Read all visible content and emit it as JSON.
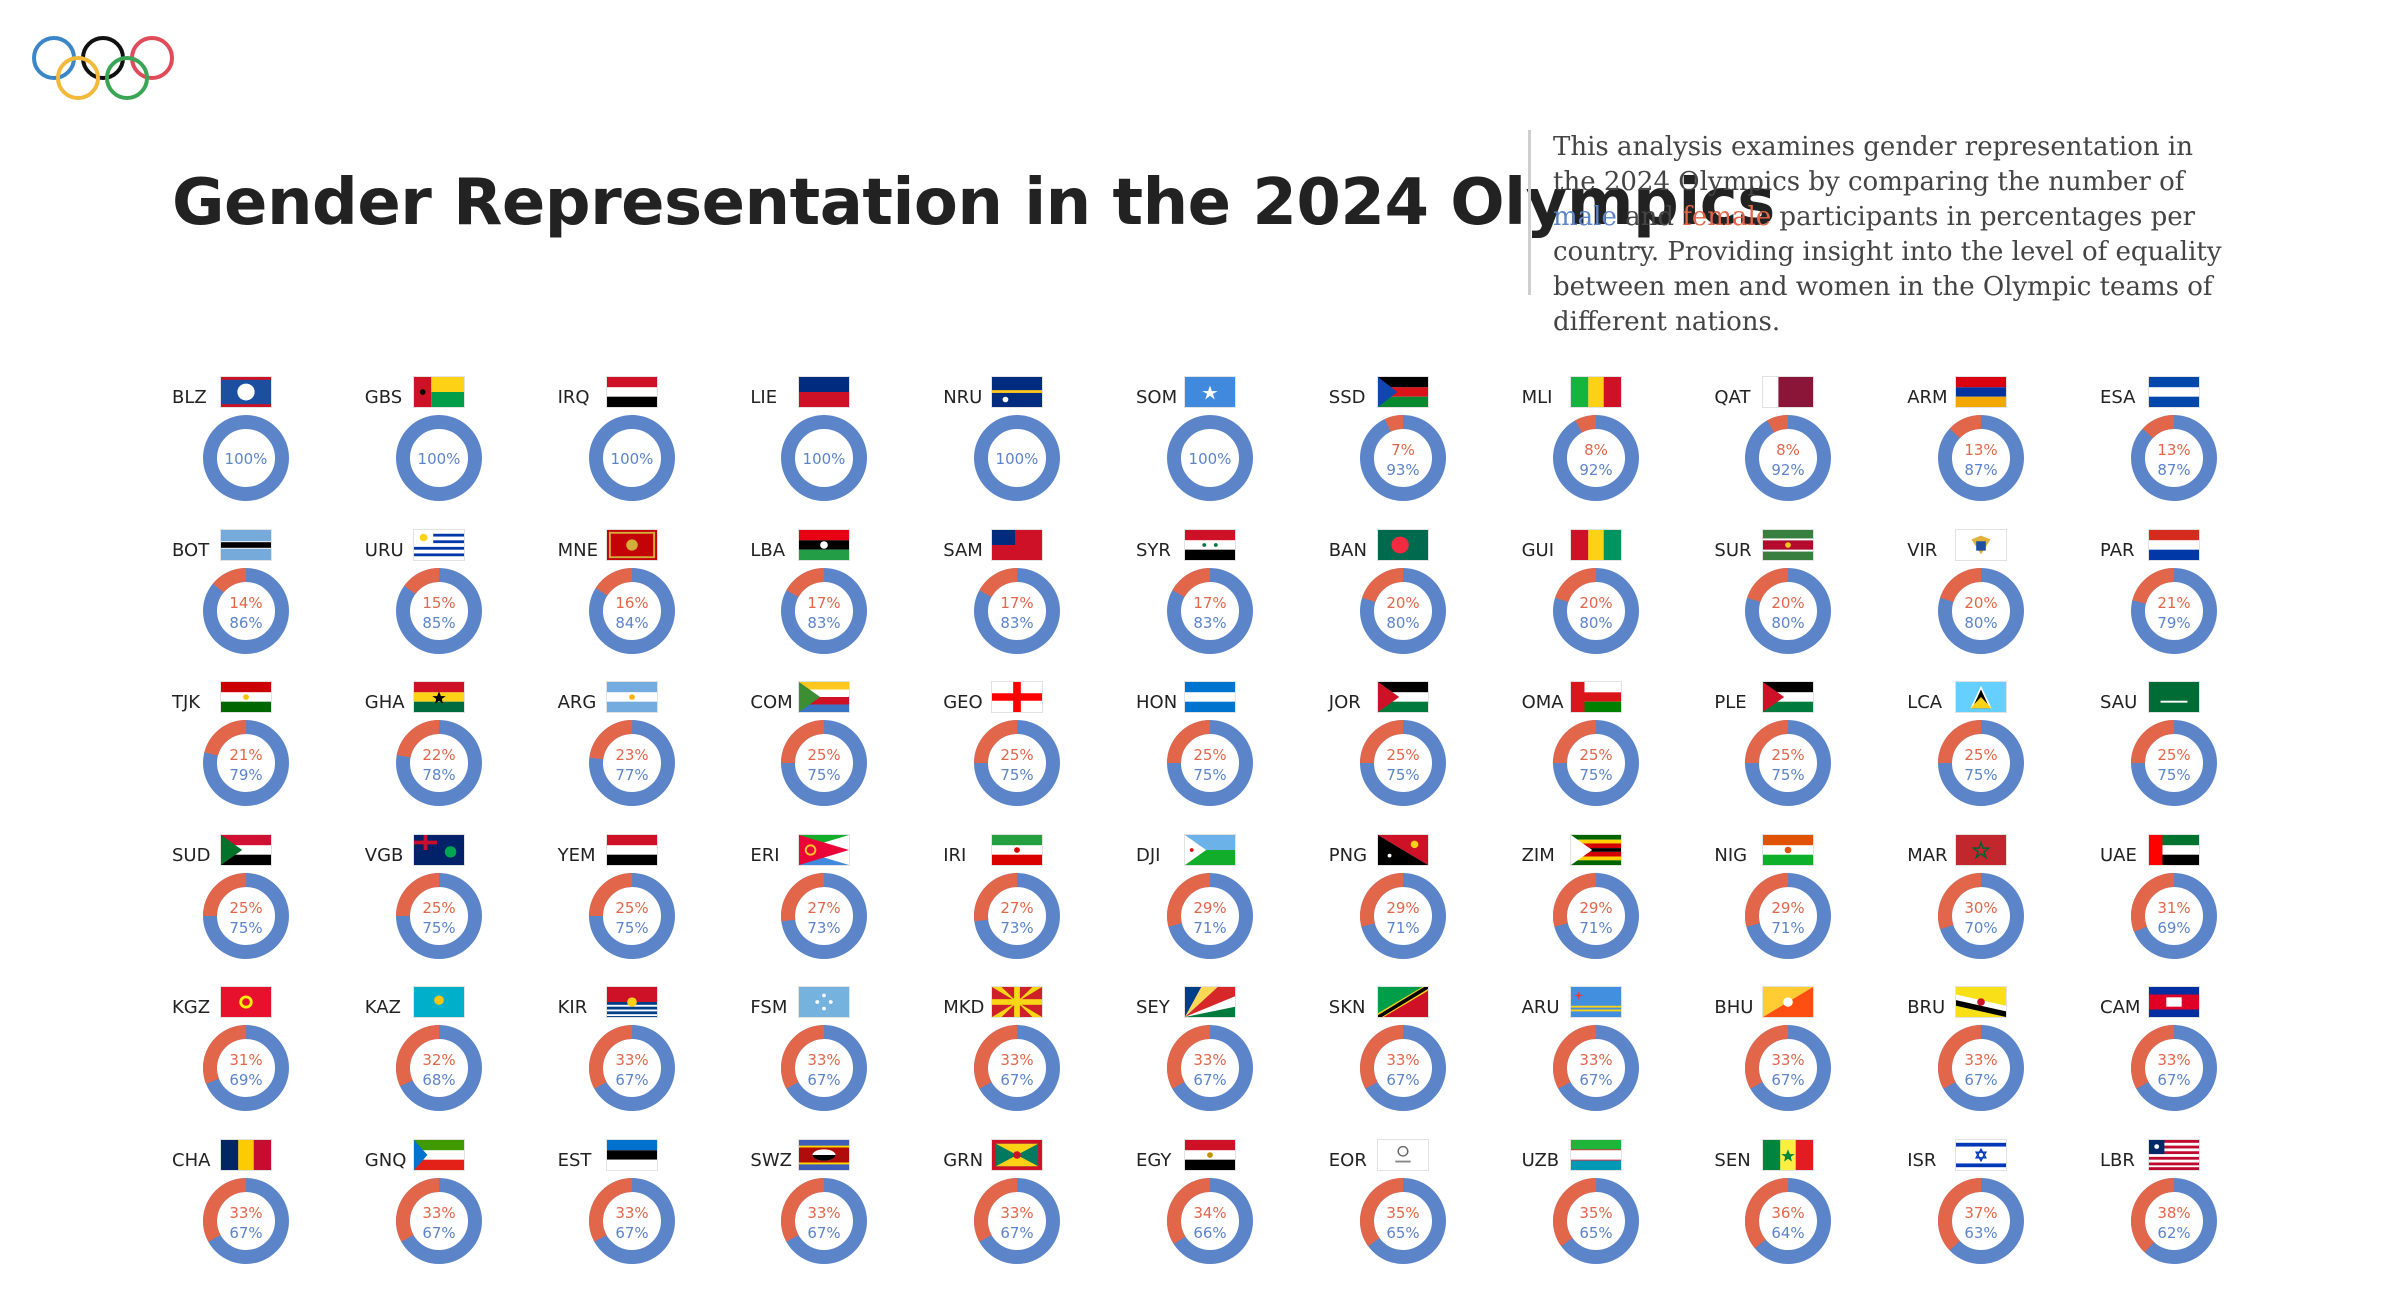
{
  "title": "Gender Representation in the 2024 Olympics",
  "intro": {
    "before": "This analysis examines gender representation in the 2024 Olympics by comparing the number of ",
    "male_word": "male",
    "and_word": " and ",
    "female_word": "female",
    "after": " participants in percentages per country. Providing insight into the level of equality between men and women in the Olympic teams of different nations."
  },
  "colors": {
    "male": "#5b84c9",
    "female": "#e2664a"
  },
  "chart_data": {
    "type": "pie",
    "layout": "small-multiples-donut",
    "countries": [
      {
        "code": "BLZ",
        "female": 0,
        "male": 100
      },
      {
        "code": "GBS",
        "female": 0,
        "male": 100
      },
      {
        "code": "IRQ",
        "female": 0,
        "male": 100
      },
      {
        "code": "LIE",
        "female": 0,
        "male": 100
      },
      {
        "code": "NRU",
        "female": 0,
        "male": 100
      },
      {
        "code": "SOM",
        "female": 0,
        "male": 100
      },
      {
        "code": "SSD",
        "female": 7,
        "male": 93
      },
      {
        "code": "MLI",
        "female": 8,
        "male": 92
      },
      {
        "code": "QAT",
        "female": 8,
        "male": 92
      },
      {
        "code": "ARM",
        "female": 13,
        "male": 87
      },
      {
        "code": "ESA",
        "female": 13,
        "male": 87
      },
      {
        "code": "BOT",
        "female": 14,
        "male": 86
      },
      {
        "code": "URU",
        "female": 15,
        "male": 85
      },
      {
        "code": "MNE",
        "female": 16,
        "male": 84
      },
      {
        "code": "LBA",
        "female": 17,
        "male": 83
      },
      {
        "code": "SAM",
        "female": 17,
        "male": 83
      },
      {
        "code": "SYR",
        "female": 17,
        "male": 83
      },
      {
        "code": "BAN",
        "female": 20,
        "male": 80
      },
      {
        "code": "GUI",
        "female": 20,
        "male": 80
      },
      {
        "code": "SUR",
        "female": 20,
        "male": 80
      },
      {
        "code": "VIR",
        "female": 20,
        "male": 80
      },
      {
        "code": "PAR",
        "female": 21,
        "male": 79
      },
      {
        "code": "TJK",
        "female": 21,
        "male": 79
      },
      {
        "code": "GHA",
        "female": 22,
        "male": 78
      },
      {
        "code": "ARG",
        "female": 23,
        "male": 77
      },
      {
        "code": "COM",
        "female": 25,
        "male": 75
      },
      {
        "code": "GEO",
        "female": 25,
        "male": 75
      },
      {
        "code": "HON",
        "female": 25,
        "male": 75
      },
      {
        "code": "JOR",
        "female": 25,
        "male": 75
      },
      {
        "code": "OMA",
        "female": 25,
        "male": 75
      },
      {
        "code": "PLE",
        "female": 25,
        "male": 75
      },
      {
        "code": "LCA",
        "female": 25,
        "male": 75
      },
      {
        "code": "SAU",
        "female": 25,
        "male": 75
      },
      {
        "code": "SUD",
        "female": 25,
        "male": 75
      },
      {
        "code": "VGB",
        "female": 25,
        "male": 75
      },
      {
        "code": "YEM",
        "female": 25,
        "male": 75
      },
      {
        "code": "ERI",
        "female": 27,
        "male": 73
      },
      {
        "code": "IRI",
        "female": 27,
        "male": 73
      },
      {
        "code": "DJI",
        "female": 29,
        "male": 71
      },
      {
        "code": "PNG",
        "female": 29,
        "male": 71
      },
      {
        "code": "ZIM",
        "female": 29,
        "male": 71
      },
      {
        "code": "NIG",
        "female": 29,
        "male": 71
      },
      {
        "code": "MAR",
        "female": 30,
        "male": 70
      },
      {
        "code": "UAE",
        "female": 31,
        "male": 69
      },
      {
        "code": "KGZ",
        "female": 31,
        "male": 69
      },
      {
        "code": "KAZ",
        "female": 32,
        "male": 68
      },
      {
        "code": "KIR",
        "female": 33,
        "male": 67
      },
      {
        "code": "FSM",
        "female": 33,
        "male": 67
      },
      {
        "code": "MKD",
        "female": 33,
        "male": 67
      },
      {
        "code": "SEY",
        "female": 33,
        "male": 67
      },
      {
        "code": "SKN",
        "female": 33,
        "male": 67
      },
      {
        "code": "ARU",
        "female": 33,
        "male": 67
      },
      {
        "code": "BHU",
        "female": 33,
        "male": 67
      },
      {
        "code": "BRU",
        "female": 33,
        "male": 67
      },
      {
        "code": "CAM",
        "female": 33,
        "male": 67
      },
      {
        "code": "CHA",
        "female": 33,
        "male": 67
      },
      {
        "code": "GNQ",
        "female": 33,
        "male": 67
      },
      {
        "code": "EST",
        "female": 33,
        "male": 67
      },
      {
        "code": "SWZ",
        "female": 33,
        "male": 67
      },
      {
        "code": "GRN",
        "female": 33,
        "male": 67
      },
      {
        "code": "EGY",
        "female": 34,
        "male": 66
      },
      {
        "code": "EOR",
        "female": 35,
        "male": 65
      },
      {
        "code": "UZB",
        "female": 35,
        "male": 65
      },
      {
        "code": "SEN",
        "female": 36,
        "male": 64
      },
      {
        "code": "ISR",
        "female": 37,
        "male": 63
      },
      {
        "code": "LBR",
        "female": 38,
        "male": 62
      }
    ]
  }
}
